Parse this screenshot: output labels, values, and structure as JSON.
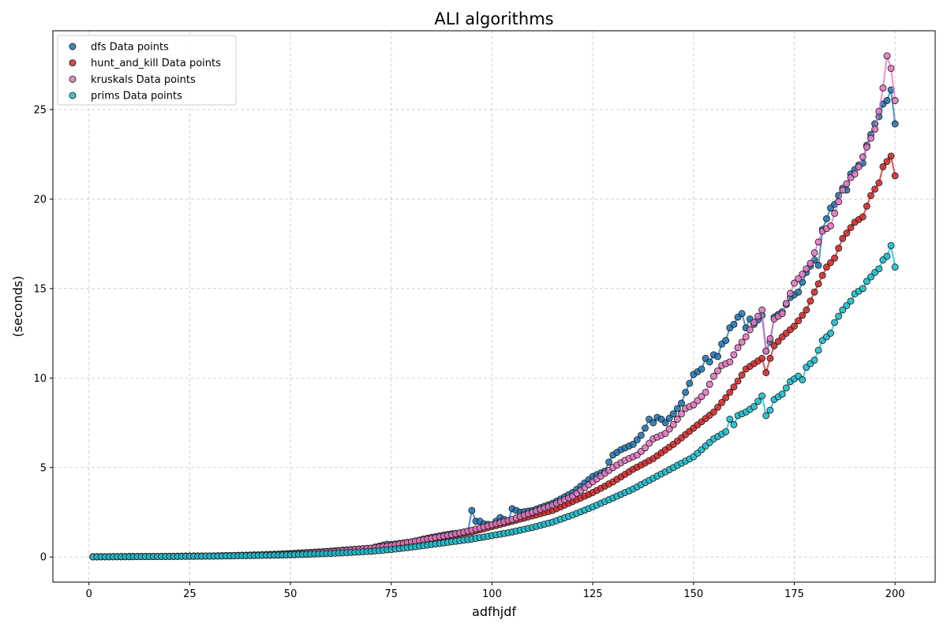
{
  "chart_data": {
    "type": "line",
    "title": "ALI algorithms",
    "xlabel": "adfhjdf",
    "ylabel": "(seconds)",
    "xlim": [
      -8.95,
      209.95
    ],
    "ylim": [
      -1.4,
      29.4
    ],
    "xticks": [
      0,
      25,
      50,
      75,
      100,
      125,
      150,
      175,
      200
    ],
    "yticks": [
      0,
      5,
      10,
      15,
      20,
      25
    ],
    "grid": true,
    "legend_position": "top-left",
    "series": [
      {
        "name": "dfs Data points",
        "color": "#1f77b4",
        "points": [
          [
            1,
            0.02
          ],
          [
            5,
            0.02
          ],
          [
            10,
            0.03
          ],
          [
            15,
            0.03
          ],
          [
            20,
            0.04
          ],
          [
            25,
            0.05
          ],
          [
            30,
            0.06
          ],
          [
            35,
            0.08
          ],
          [
            40,
            0.11
          ],
          [
            45,
            0.15
          ],
          [
            50,
            0.2
          ],
          [
            55,
            0.26
          ],
          [
            60,
            0.33
          ],
          [
            65,
            0.42
          ],
          [
            70,
            0.5
          ],
          [
            74,
            0.72
          ],
          [
            75,
            0.7
          ],
          [
            80,
            0.85
          ],
          [
            85,
            1.1
          ],
          [
            90,
            1.3
          ],
          [
            94,
            1.4
          ],
          [
            95,
            2.6
          ],
          [
            96,
            2.0
          ],
          [
            97,
            2.0
          ],
          [
            98,
            1.85
          ],
          [
            100,
            1.8
          ],
          [
            102,
            2.2
          ],
          [
            104,
            2.0
          ],
          [
            105,
            2.7
          ],
          [
            106,
            2.6
          ],
          [
            107,
            2.5
          ],
          [
            110,
            2.6
          ],
          [
            115,
            3.0
          ],
          [
            120,
            3.6
          ],
          [
            125,
            4.5
          ],
          [
            128,
            4.8
          ],
          [
            129,
            5.3
          ],
          [
            130,
            5.7
          ],
          [
            132,
            6.0
          ],
          [
            135,
            6.3
          ],
          [
            137,
            6.8
          ],
          [
            138,
            7.2
          ],
          [
            139,
            7.7
          ],
          [
            140,
            7.5
          ],
          [
            141,
            7.8
          ],
          [
            142,
            7.7
          ],
          [
            143,
            7.5
          ],
          [
            145,
            8.0
          ],
          [
            147,
            8.6
          ],
          [
            148,
            9.2
          ],
          [
            149,
            9.7
          ],
          [
            150,
            10.2
          ],
          [
            152,
            10.5
          ],
          [
            153,
            11.1
          ],
          [
            154,
            10.9
          ],
          [
            155,
            11.3
          ],
          [
            156,
            11.2
          ],
          [
            157,
            11.9
          ],
          [
            158,
            12.1
          ],
          [
            159,
            12.8
          ],
          [
            160,
            13.0
          ],
          [
            161,
            13.4
          ],
          [
            162,
            13.6
          ],
          [
            163,
            12.8
          ],
          [
            164,
            13.3
          ],
          [
            165,
            13.0
          ],
          [
            167,
            13.5
          ],
          [
            168,
            11.5
          ],
          [
            169,
            12.0
          ],
          [
            170,
            13.4
          ],
          [
            172,
            13.7
          ],
          [
            174,
            14.5
          ],
          [
            176,
            14.8
          ],
          [
            178,
            15.9
          ],
          [
            180,
            16.6
          ],
          [
            181,
            16.3
          ],
          [
            182,
            18.3
          ],
          [
            184,
            19.5
          ],
          [
            185,
            19.7
          ],
          [
            186,
            20.2
          ],
          [
            187,
            20.6
          ],
          [
            188,
            20.5
          ],
          [
            189,
            21.4
          ],
          [
            191,
            21.9
          ],
          [
            192,
            22.0
          ],
          [
            193,
            23.0
          ],
          [
            194,
            23.6
          ],
          [
            195,
            24.2
          ],
          [
            196,
            24.6
          ],
          [
            197,
            25.3
          ],
          [
            198,
            25.5
          ],
          [
            199,
            26.1
          ],
          [
            200,
            24.2
          ]
        ]
      },
      {
        "name": "hunt_and_kill Data points",
        "color": "#d62728",
        "points": [
          [
            1,
            0.01
          ],
          [
            10,
            0.02
          ],
          [
            20,
            0.04
          ],
          [
            30,
            0.06
          ],
          [
            40,
            0.1
          ],
          [
            50,
            0.16
          ],
          [
            60,
            0.28
          ],
          [
            70,
            0.48
          ],
          [
            75,
            0.62
          ],
          [
            80,
            0.8
          ],
          [
            85,
            1.0
          ],
          [
            90,
            1.2
          ],
          [
            95,
            1.4
          ],
          [
            100,
            1.7
          ],
          [
            105,
            2.0
          ],
          [
            110,
            2.3
          ],
          [
            115,
            2.6
          ],
          [
            120,
            3.1
          ],
          [
            125,
            3.6
          ],
          [
            130,
            4.2
          ],
          [
            135,
            4.9
          ],
          [
            140,
            5.5
          ],
          [
            145,
            6.3
          ],
          [
            150,
            7.2
          ],
          [
            155,
            8.1
          ],
          [
            158,
            8.9
          ],
          [
            160,
            9.5
          ],
          [
            163,
            10.5
          ],
          [
            165,
            10.8
          ],
          [
            167,
            11.1
          ],
          [
            168,
            10.3
          ],
          [
            169,
            11.1
          ],
          [
            170,
            11.8
          ],
          [
            172,
            12.3
          ],
          [
            175,
            12.9
          ],
          [
            178,
            13.8
          ],
          [
            180,
            14.8
          ],
          [
            183,
            16.2
          ],
          [
            185,
            16.7
          ],
          [
            187,
            17.8
          ],
          [
            190,
            18.7
          ],
          [
            192,
            19.0
          ],
          [
            194,
            20.2
          ],
          [
            196,
            20.9
          ],
          [
            197,
            21.8
          ],
          [
            198,
            22.1
          ],
          [
            199,
            22.4
          ],
          [
            200,
            21.3
          ]
        ]
      },
      {
        "name": "kruskals Data points",
        "color": "#e377c2",
        "points": [
          [
            1,
            0.02
          ],
          [
            10,
            0.03
          ],
          [
            20,
            0.04
          ],
          [
            30,
            0.06
          ],
          [
            40,
            0.1
          ],
          [
            50,
            0.17
          ],
          [
            60,
            0.3
          ],
          [
            70,
            0.5
          ],
          [
            75,
            0.65
          ],
          [
            80,
            0.85
          ],
          [
            85,
            1.05
          ],
          [
            90,
            1.25
          ],
          [
            95,
            1.5
          ],
          [
            100,
            1.8
          ],
          [
            105,
            2.1
          ],
          [
            110,
            2.5
          ],
          [
            115,
            2.9
          ],
          [
            120,
            3.4
          ],
          [
            125,
            4.2
          ],
          [
            130,
            5.0
          ],
          [
            133,
            5.4
          ],
          [
            136,
            5.7
          ],
          [
            138,
            6.1
          ],
          [
            140,
            6.6
          ],
          [
            143,
            6.9
          ],
          [
            145,
            7.4
          ],
          [
            148,
            8.3
          ],
          [
            150,
            8.5
          ],
          [
            153,
            9.2
          ],
          [
            155,
            10.1
          ],
          [
            157,
            10.7
          ],
          [
            159,
            10.9
          ],
          [
            161,
            11.7
          ],
          [
            163,
            12.3
          ],
          [
            165,
            13.1
          ],
          [
            167,
            13.8
          ],
          [
            168,
            11.5
          ],
          [
            169,
            12.2
          ],
          [
            170,
            13.3
          ],
          [
            172,
            13.6
          ],
          [
            175,
            15.3
          ],
          [
            177,
            15.8
          ],
          [
            179,
            16.4
          ],
          [
            180,
            17.0
          ],
          [
            182,
            18.2
          ],
          [
            184,
            18.5
          ],
          [
            185,
            19.2
          ],
          [
            187,
            20.5
          ],
          [
            189,
            21.2
          ],
          [
            190,
            21.4
          ],
          [
            191,
            21.8
          ],
          [
            193,
            22.9
          ],
          [
            195,
            23.9
          ],
          [
            196,
            24.9
          ],
          [
            197,
            26.2
          ],
          [
            198,
            28.0
          ],
          [
            199,
            27.3
          ],
          [
            200,
            25.5
          ]
        ]
      },
      {
        "name": "prims Data points",
        "color": "#17becf",
        "points": [
          [
            1,
            0.01
          ],
          [
            10,
            0.02
          ],
          [
            20,
            0.03
          ],
          [
            30,
            0.05
          ],
          [
            40,
            0.08
          ],
          [
            50,
            0.12
          ],
          [
            60,
            0.2
          ],
          [
            70,
            0.32
          ],
          [
            75,
            0.42
          ],
          [
            80,
            0.55
          ],
          [
            85,
            0.7
          ],
          [
            90,
            0.85
          ],
          [
            95,
            1.0
          ],
          [
            100,
            1.2
          ],
          [
            105,
            1.4
          ],
          [
            110,
            1.65
          ],
          [
            115,
            1.95
          ],
          [
            120,
            2.35
          ],
          [
            125,
            2.8
          ],
          [
            130,
            3.3
          ],
          [
            135,
            3.8
          ],
          [
            140,
            4.4
          ],
          [
            145,
            5.0
          ],
          [
            150,
            5.6
          ],
          [
            155,
            6.6
          ],
          [
            158,
            7.0
          ],
          [
            159,
            7.7
          ],
          [
            160,
            7.4
          ],
          [
            161,
            7.9
          ],
          [
            163,
            8.1
          ],
          [
            165,
            8.4
          ],
          [
            167,
            9.0
          ],
          [
            168,
            7.9
          ],
          [
            169,
            8.2
          ],
          [
            170,
            8.8
          ],
          [
            172,
            9.1
          ],
          [
            174,
            9.8
          ],
          [
            176,
            10.1
          ],
          [
            177,
            9.9
          ],
          [
            178,
            10.6
          ],
          [
            180,
            11.0
          ],
          [
            182,
            12.1
          ],
          [
            184,
            12.5
          ],
          [
            185,
            13.1
          ],
          [
            187,
            13.8
          ],
          [
            189,
            14.3
          ],
          [
            190,
            14.7
          ],
          [
            192,
            15.0
          ],
          [
            193,
            15.4
          ],
          [
            195,
            15.9
          ],
          [
            196,
            16.1
          ],
          [
            197,
            16.6
          ],
          [
            198,
            16.8
          ],
          [
            199,
            17.4
          ],
          [
            200,
            16.2
          ]
        ]
      }
    ]
  }
}
